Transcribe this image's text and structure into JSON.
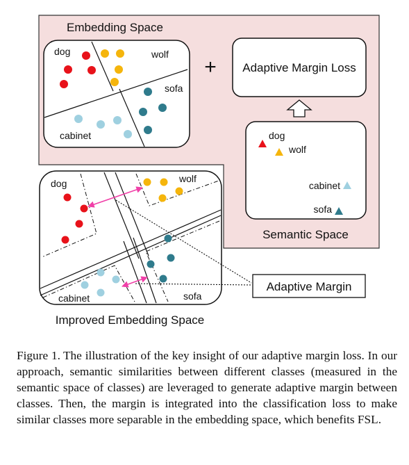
{
  "figure": {
    "embedding_space": {
      "title": "Embedding Space",
      "labels": {
        "dog": "dog",
        "wolf": "wolf",
        "sofa": "sofa",
        "cabinet": "cabinet"
      }
    },
    "plus_sign": "+",
    "adaptive_margin_loss": "Adaptive Margin Loss",
    "semantic_space": {
      "title": "Semantic Space",
      "labels": {
        "dog": "dog",
        "wolf": "wolf",
        "cabinet": "cabinet",
        "sofa": "sofa"
      }
    },
    "improved_space": {
      "title": "Improved Embedding Space",
      "labels": {
        "dog": "dog",
        "wolf": "wolf",
        "cabinet": "cabinet",
        "sofa": "sofa"
      }
    },
    "adaptive_margin": "Adaptive Margin",
    "colors": {
      "dog": "#e8121a",
      "wolf": "#f5b50c",
      "cabinet": "#9fd0e0",
      "sofa": "#2f7b8c",
      "background_panel": "#f5dede",
      "arrow": "#f040a8"
    }
  },
  "caption": {
    "label": "Figure 1.",
    "text": "The illustration of the key insight of our adaptive margin loss. In our approach, semantic similarities between different classes (measured in the semantic space of classes) are leveraged to generate adaptive margin between classes. Then, the margin is integrated into the classification loss to make similar classes more separable in the embedding space, which benefits FSL."
  }
}
